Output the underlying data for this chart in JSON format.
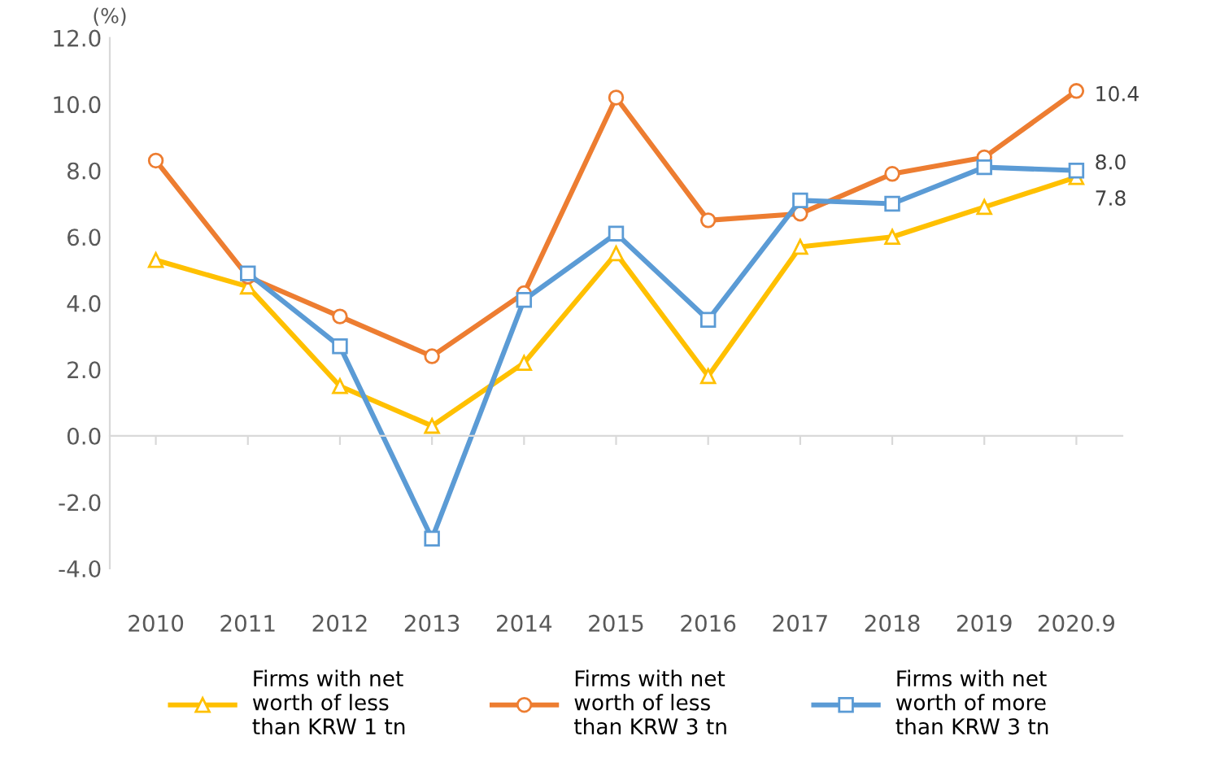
{
  "chart_data": {
    "type": "line",
    "ylabel": "(%)",
    "categories": [
      "2010",
      "2011",
      "2012",
      "2013",
      "2014",
      "2015",
      "2016",
      "2017",
      "2018",
      "2019",
      "2020.9"
    ],
    "series": [
      {
        "name": "Firms with net\nworth of less\nthan KRW 1 tn",
        "color": "#ffc000",
        "marker": "triangle",
        "values": [
          5.3,
          4.5,
          1.5,
          0.3,
          2.2,
          5.5,
          1.8,
          5.7,
          6.0,
          6.9,
          7.8
        ],
        "value_labels": [
          null,
          null,
          null,
          null,
          null,
          null,
          null,
          null,
          null,
          null,
          "7.8"
        ]
      },
      {
        "name": "Firms with net\nworth of less\nthan KRW 3 tn",
        "color": "#ed7d31",
        "marker": "circle",
        "values": [
          8.3,
          4.8,
          3.6,
          2.4,
          4.3,
          10.2,
          6.5,
          6.7,
          7.9,
          8.4,
          10.4
        ],
        "value_labels": [
          null,
          null,
          null,
          null,
          null,
          null,
          null,
          null,
          null,
          null,
          "10.4"
        ]
      },
      {
        "name": "Firms with net\nworth of more\nthan KRW 3 tn",
        "color": "#5b9bd5",
        "marker": "square",
        "values": [
          null,
          4.9,
          2.7,
          -3.1,
          4.1,
          6.1,
          3.5,
          7.1,
          7.0,
          8.1,
          8.0
        ],
        "value_labels": [
          null,
          null,
          null,
          null,
          null,
          null,
          null,
          null,
          null,
          null,
          "8.0"
        ]
      }
    ],
    "ylim": [
      -4.0,
      12.0
    ],
    "yticks": [
      {
        "value": -4,
        "label": "-4.0"
      },
      {
        "value": -2,
        "label": "-2.0"
      },
      {
        "value": 0,
        "label": "0.0"
      },
      {
        "value": 2,
        "label": "2.0"
      },
      {
        "value": 4,
        "label": "4.0"
      },
      {
        "value": 6,
        "label": "6.0"
      },
      {
        "value": 8,
        "label": "8.0"
      },
      {
        "value": 10,
        "label": "10.0"
      },
      {
        "value": 12,
        "label": "12.0"
      }
    ],
    "legend": "bottom",
    "line_style": "solid"
  }
}
